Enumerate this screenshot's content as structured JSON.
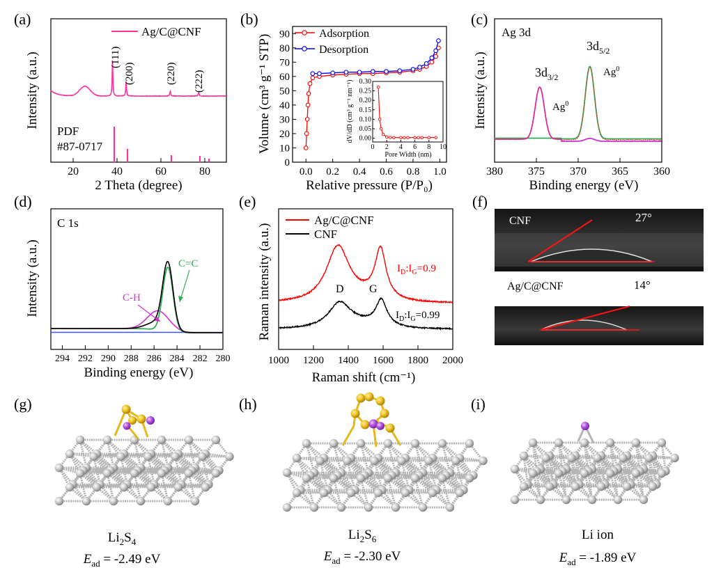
{
  "panels": {
    "a": "(a)",
    "b": "(b)",
    "c": "(c)",
    "d": "(d)",
    "e": "(e)",
    "f": "(f)",
    "g": "(g)",
    "h": "(h)",
    "i": "(i)"
  },
  "xrd": {
    "ylabel": "Intensity (a.u.)",
    "xlabel": "2 Theta (degree)",
    "legend": "Ag/C@CNF",
    "pdf1": "PDF",
    "pdf2": "#87-0717",
    "colors": {
      "line": "#ff3399"
    }
  },
  "bet": {
    "ylabel": "Volume (cm³ g⁻¹ STP)",
    "xlabel": "Relative pressure (P/P₀)",
    "inset_ylabel": "dV/dD (cm³ g⁻¹ nm⁻¹)",
    "inset_xlabel": "Pore Width (nm)",
    "colors": {
      "adsorption": "#ff0000",
      "desorption": "#0000ff"
    }
  },
  "ag3d": {
    "title": "Ag 3d",
    "ylabel": "Intensity (a.u.)",
    "xlabel": "Binding energy (eV)",
    "lbl_32": "3d",
    "sub_32": "3/2",
    "lbl_52": "3d",
    "sub_52": "5/2",
    "ag0_a": "Ag",
    "ag0_b": "Ag",
    "sup0": "0"
  },
  "c1s": {
    "title": "C 1s",
    "ylabel": "Intensity (a.u.)",
    "xlabel": "Binding energy (eV)",
    "ch_label": "C-H",
    "cc_label": "C=C"
  },
  "raman": {
    "ylabel": "Raman intensity (a.u.)",
    "xlabel": "Raman  shift (cm⁻¹)",
    "d_label": "D",
    "g_label": "G",
    "ratio_cnf_main": "I",
    "ratio_sub_d": "D",
    "ratio_colon": ":I",
    "ratio_sub_g": "G",
    "ratio_val_ag": "=0.9",
    "ratio_val_cnf": "=0.99"
  },
  "contact": {
    "cnf_label": "CNF",
    "cnf_angle": "27°",
    "ag_label": "Ag/C@CNF",
    "ag_angle": "14°"
  },
  "models": {
    "g_formula": "Li",
    "g_sub": "2",
    "g_tail": "S",
    "g_sub2": "4",
    "g_energy_sym": "E",
    "g_energy_sub": "ad",
    "g_energy_val": " = -2.49 eV",
    "h_formula": "Li",
    "h_sub": "2",
    "h_tail": "S",
    "h_sub2": "6",
    "h_energy_sym": "E",
    "h_energy_sub": "ad",
    "h_energy_val": " = -2.30 eV",
    "i_label": "Li ion",
    "i_energy_sym": "E",
    "i_energy_sub": "ad",
    "i_energy_val": " = -1.89 eV",
    "colors": {
      "ag": "#c8c8c8",
      "s": "#f0c020",
      "li": "#b050e0"
    }
  },
  "chart_data": [
    {
      "type": "line",
      "panel": "a",
      "xlabel": "2 Theta (degree)",
      "ylabel": "Intensity (a.u.)",
      "xlim": [
        10,
        90
      ],
      "xticks": [
        "20",
        "40",
        "60",
        "80"
      ],
      "series": [
        {
          "name": "Ag/C@CNF",
          "peaks": [
            {
              "x": 38.1,
              "label": "(111)"
            },
            {
              "x": 44.3,
              "label": "(200)"
            },
            {
              "x": 64.4,
              "label": "(220)"
            },
            {
              "x": 77.4,
              "label": "(222)"
            }
          ]
        }
      ],
      "reference_lines": [
        38.1,
        44.3,
        64.4,
        77.4,
        81.5
      ]
    },
    {
      "type": "line",
      "panel": "b",
      "xlabel": "Relative pressure (P/P0)",
      "ylabel": "Volume (cm3 g-1 STP)",
      "xlim": [
        -0.1,
        1.05
      ],
      "ylim": [
        0,
        95
      ],
      "xticks": [
        "0.0",
        "0.2",
        "0.4",
        "0.6",
        "0.8",
        "1.0"
      ],
      "yticks": [
        "0",
        "10",
        "20",
        "30",
        "40",
        "50",
        "60",
        "70",
        "80",
        "90"
      ],
      "series": [
        {
          "name": "Adsorption",
          "x": [
            0.0,
            0.005,
            0.01,
            0.015,
            0.02,
            0.03,
            0.05,
            0.1,
            0.2,
            0.3,
            0.4,
            0.5,
            0.6,
            0.7,
            0.8,
            0.85,
            0.9,
            0.94,
            0.97,
            0.99
          ],
          "y": [
            10,
            20,
            30,
            40,
            48,
            55,
            59,
            60,
            61,
            61.5,
            62,
            62,
            62.5,
            63,
            64,
            65,
            67,
            70,
            74,
            80
          ]
        },
        {
          "name": "Desorption",
          "x": [
            0.05,
            0.1,
            0.2,
            0.3,
            0.4,
            0.5,
            0.6,
            0.7,
            0.8,
            0.85,
            0.9,
            0.94,
            0.97,
            0.99
          ],
          "y": [
            62,
            62,
            62.5,
            63,
            63,
            63.5,
            63.5,
            64,
            65,
            66.5,
            69,
            73,
            78,
            85
          ]
        }
      ],
      "inset": {
        "xlabel": "Pore Width (nm)",
        "ylabel": "dV/dD (cm3 g-1 nm-1)",
        "xlim": [
          0,
          10
        ],
        "ylim": [
          -0.02,
          0.3
        ],
        "xticks": [
          "0",
          "2",
          "4",
          "6",
          "8",
          "10"
        ],
        "yticks": [
          "0.00",
          "0.05",
          "0.10",
          "0.15",
          "0.20",
          "0.25",
          "0.30"
        ],
        "x": [
          0.8,
          1.0,
          1.2,
          1.5,
          2,
          2.5,
          3,
          4,
          4.5,
          5,
          6,
          6.5,
          7,
          8,
          9
        ],
        "y": [
          0.27,
          0.1,
          0.05,
          0.02,
          0.006,
          0.004,
          0.003,
          0.003,
          0.003,
          0.003,
          0.003,
          0.003,
          0.003,
          0.003,
          0.003
        ]
      }
    },
    {
      "type": "line",
      "panel": "c",
      "xlabel": "Binding energy (eV)",
      "ylabel": "Intensity (a.u.)",
      "xlim": [
        380,
        360
      ],
      "xticks": [
        "380",
        "375",
        "370",
        "365",
        "360"
      ],
      "peaks": [
        {
          "center": 374.6,
          "height": 0.72,
          "label": "3d3/2"
        },
        {
          "center": 368.6,
          "height": 1.0,
          "label": "3d5/2"
        }
      ]
    },
    {
      "type": "line",
      "panel": "d",
      "xlabel": "Binding energy (eV)",
      "ylabel": "Intensity (a.u.)",
      "xlim": [
        295,
        280
      ],
      "xticks": [
        "294",
        "292",
        "290",
        "288",
        "286",
        "284",
        "282",
        "280"
      ],
      "components": [
        {
          "name": "C=C",
          "center": 284.8,
          "height": 0.86,
          "color": "#33aa55"
        },
        {
          "name": "C-H",
          "center": 285.6,
          "height": 0.26,
          "color": "#cc33cc"
        }
      ]
    },
    {
      "type": "line",
      "panel": "e",
      "xlabel": "Raman shift (cm-1)",
      "ylabel": "Raman intensity (a.u.)",
      "xlim": [
        1000,
        2000
      ],
      "xticks": [
        "1000",
        "1200",
        "1400",
        "1600",
        "1800",
        "2000"
      ],
      "series": [
        {
          "name": "Ag/C@CNF",
          "D": 1340,
          "G": 1585,
          "ID_IG": "0.9"
        },
        {
          "name": "CNF",
          "D": 1350,
          "G": 1590,
          "ID_IG": "0.99"
        }
      ]
    }
  ]
}
